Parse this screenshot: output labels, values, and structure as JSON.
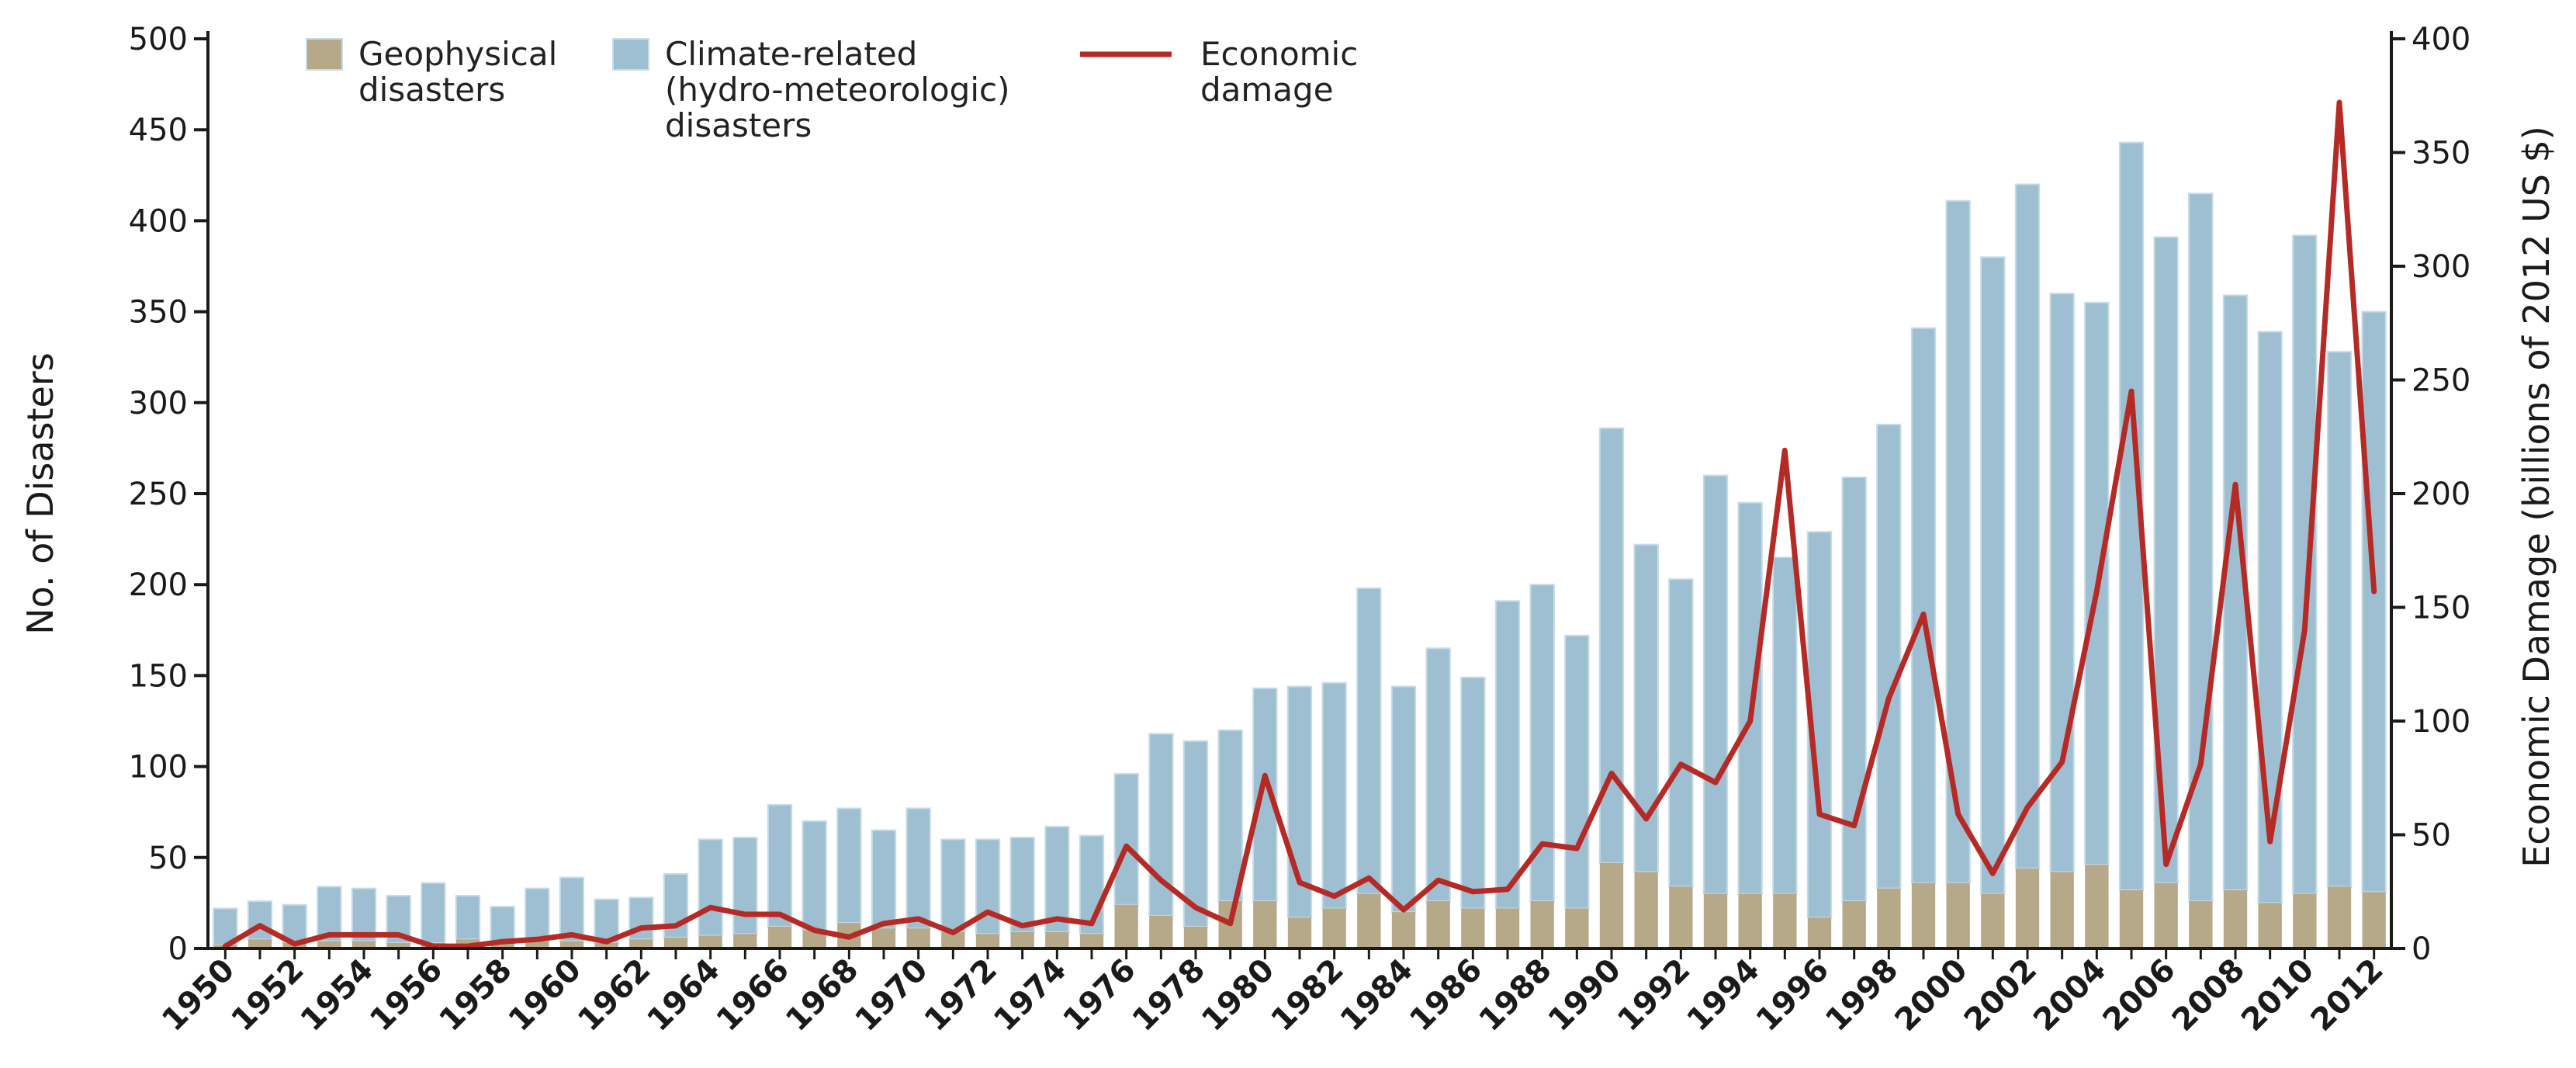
{
  "chart_data": {
    "type": "bar",
    "title": "",
    "categories": [
      "1950",
      "1951",
      "1952",
      "1953",
      "1954",
      "1955",
      "1956",
      "1957",
      "1958",
      "1959",
      "1960",
      "1961",
      "1962",
      "1963",
      "1964",
      "1965",
      "1966",
      "1967",
      "1968",
      "1969",
      "1970",
      "1971",
      "1972",
      "1973",
      "1974",
      "1975",
      "1976",
      "1977",
      "1978",
      "1979",
      "1980",
      "1981",
      "1982",
      "1983",
      "1984",
      "1985",
      "1986",
      "1987",
      "1988",
      "1989",
      "1990",
      "1991",
      "1992",
      "1993",
      "1994",
      "1995",
      "1996",
      "1997",
      "1998",
      "1999",
      "2000",
      "2001",
      "2002",
      "2003",
      "2004",
      "2005",
      "2006",
      "2007",
      "2008",
      "2009",
      "2010",
      "2011",
      "2012"
    ],
    "x_tick_labels": [
      "1950",
      "1952",
      "1954",
      "1956",
      "1958",
      "1960",
      "1962",
      "1964",
      "1966",
      "1968",
      "1970",
      "1972",
      "1974",
      "1976",
      "1978",
      "1980",
      "1982",
      "1984",
      "1986",
      "1988",
      "1990",
      "1992",
      "1994",
      "1996",
      "1998",
      "2000",
      "2002",
      "2004",
      "2006",
      "2008",
      "2010",
      "2012"
    ],
    "series": [
      {
        "name": "Geophysical disasters",
        "kind": "stacked-bar",
        "axis": "left",
        "color": "#b5a98a",
        "values": [
          2,
          5,
          3,
          4,
          4,
          3,
          3,
          5,
          4,
          4,
          4,
          3,
          5,
          6,
          7,
          8,
          12,
          10,
          14,
          11,
          11,
          9,
          8,
          9,
          9,
          8,
          24,
          18,
          12,
          26,
          26,
          17,
          22,
          30,
          20,
          26,
          22,
          22,
          26,
          22,
          47,
          42,
          34,
          30,
          30,
          30,
          17,
          26,
          33,
          36,
          36,
          30,
          44,
          42,
          46,
          32,
          36,
          26,
          32,
          25,
          30,
          34,
          31
        ]
      },
      {
        "name": "Climate-related (hydro-meteorologic) disasters",
        "kind": "stacked-bar",
        "axis": "left",
        "color": "#9dbfd1",
        "values": [
          20,
          21,
          21,
          30,
          29,
          26,
          33,
          24,
          19,
          29,
          35,
          24,
          23,
          35,
          53,
          53,
          67,
          60,
          63,
          54,
          66,
          51,
          52,
          52,
          58,
          54,
          72,
          100,
          102,
          94,
          117,
          127,
          124,
          168,
          124,
          139,
          127,
          169,
          174,
          150,
          239,
          180,
          169,
          230,
          215,
          185,
          212,
          233,
          255,
          305,
          375,
          350,
          376,
          318,
          309,
          411,
          355,
          389,
          327,
          314,
          362,
          294,
          319
        ]
      },
      {
        "name": "Economic damage",
        "kind": "line",
        "axis": "right",
        "color": "#b52a25",
        "values": [
          1,
          10,
          2,
          6,
          6,
          6,
          1,
          1,
          3,
          4,
          6,
          3,
          9,
          10,
          18,
          15,
          15,
          8,
          5,
          11,
          13,
          7,
          16,
          10,
          13,
          11,
          45,
          30,
          18,
          11,
          76,
          29,
          23,
          31,
          17,
          30,
          25,
          26,
          46,
          44,
          77,
          57,
          81,
          73,
          100,
          219,
          59,
          54,
          110,
          147,
          59,
          33,
          62,
          82,
          157,
          245,
          37,
          81,
          204,
          47,
          140,
          372,
          157
        ]
      }
    ],
    "left_axis": {
      "label": "No. of Disasters",
      "ylim": [
        0,
        500
      ],
      "ticks": [
        "0",
        "50",
        "100",
        "150",
        "200",
        "250",
        "300",
        "350",
        "400",
        "450",
        "500"
      ]
    },
    "right_axis": {
      "label": "Economic Damage (billions of 2012 US $)",
      "ylim": [
        0,
        400
      ],
      "ticks": [
        "0",
        "50",
        "100",
        "150",
        "200",
        "250",
        "300",
        "350",
        "400"
      ]
    },
    "legend": {
      "placement": "top-left",
      "items": [
        {
          "lines": [
            "Geophysical",
            "disasters"
          ],
          "swatch": "bar",
          "color": "#b5a98a"
        },
        {
          "lines": [
            "Climate-related",
            "(hydro-meteorologic)",
            "disasters"
          ],
          "swatch": "bar",
          "color": "#9dbfd1"
        },
        {
          "lines": [
            "Economic",
            "damage"
          ],
          "swatch": "line",
          "color": "#b52a25"
        }
      ]
    },
    "grid": false,
    "colors": {
      "axis": "#1a1a1a",
      "bar_edge": "#c8dbe6"
    }
  }
}
